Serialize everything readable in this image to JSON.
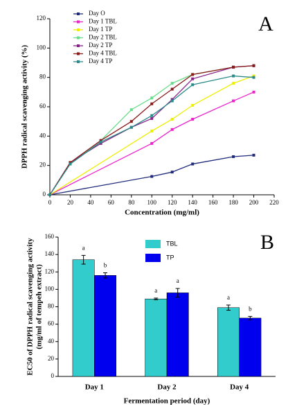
{
  "chart_data": [
    {
      "type": "line",
      "annotation": "A",
      "x_label": "Concentration (mg/ml)",
      "y_label": "DPPH radical scavenging activity (%)",
      "xlim": [
        0,
        220
      ],
      "xticks": [
        0,
        20,
        40,
        60,
        80,
        100,
        120,
        140,
        160,
        180,
        200,
        220
      ],
      "ylim": [
        0,
        120
      ],
      "yticks": [
        0,
        20,
        40,
        60,
        80,
        100,
        120
      ],
      "series": [
        {
          "name": "Day O",
          "color": "#1f2a7a",
          "x": [
            0,
            100,
            120,
            140,
            180,
            200
          ],
          "values": [
            0,
            12.5,
            15.5,
            21,
            26,
            27
          ]
        },
        {
          "name": "Day 1 TBL",
          "color": "#ee22cc",
          "x": [
            0,
            100,
            120,
            140,
            180,
            200
          ],
          "values": [
            0,
            35,
            44.5,
            51.5,
            64,
            70
          ]
        },
        {
          "name": "Day 1 TP",
          "color": "#eeee00",
          "x": [
            0,
            100,
            120,
            140,
            180,
            200
          ],
          "values": [
            0,
            43.5,
            51.5,
            61,
            76,
            81
          ]
        },
        {
          "name": "Day 2 TBL",
          "color": "#66dd88",
          "x": [
            0,
            20,
            50,
            80,
            100,
            120,
            140,
            180,
            200
          ],
          "values": [
            0,
            21,
            37,
            58,
            66,
            76,
            82,
            87,
            88
          ]
        },
        {
          "name": "Day 2 TP",
          "color": "#882288",
          "x": [
            0,
            20,
            50,
            80,
            100,
            120,
            140,
            180,
            200
          ],
          "values": [
            0,
            22,
            35,
            46,
            52,
            65,
            79,
            87,
            88
          ]
        },
        {
          "name": "Day 4 TBL",
          "color": "#8b1a1a",
          "x": [
            0,
            20,
            50,
            80,
            100,
            120,
            140,
            180,
            200
          ],
          "values": [
            0,
            22,
            37,
            50,
            62,
            72,
            82,
            87,
            88
          ]
        },
        {
          "name": "Day 4 TP",
          "color": "#2a8a8a",
          "x": [
            0,
            20,
            50,
            80,
            100,
            120,
            140,
            180,
            200
          ],
          "values": [
            0,
            21,
            36,
            46,
            54,
            64,
            75,
            81,
            80
          ]
        }
      ]
    },
    {
      "type": "bar",
      "annotation": "B",
      "x_label": "Fermentation period (day)",
      "y_label": [
        "EC50 of DPPH radical scavenging activity",
        "(mg/ml of tempeh extract)"
      ],
      "categories": [
        "Day 1",
        "Day 2",
        "Day 4"
      ],
      "ylim": [
        0,
        160
      ],
      "yticks": [
        0,
        20,
        40,
        60,
        80,
        100,
        120,
        140,
        160
      ],
      "series": [
        {
          "name": "TBL",
          "color": "#33cccc",
          "values": [
            134,
            89,
            79
          ],
          "errors": [
            5,
            1,
            3
          ],
          "letters": [
            "a",
            "a",
            "a"
          ]
        },
        {
          "name": "TP",
          "color": "#0000ee",
          "values": [
            116,
            96,
            67
          ],
          "errors": [
            3,
            5,
            2
          ],
          "letters": [
            "b",
            "a",
            "b"
          ]
        }
      ]
    }
  ]
}
